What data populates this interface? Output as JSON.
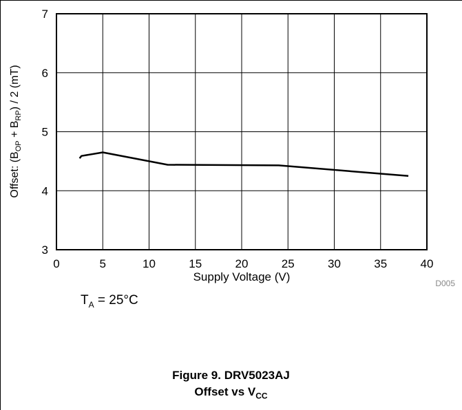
{
  "chart_data": {
    "type": "line",
    "xlabel": "Supply Voltage (V)",
    "ylabel": {
      "prefix": "Offset: (B",
      "sub1": "OP",
      "mid": " + B",
      "sub2": "RP",
      "suffix": ") / 2 (mT)"
    },
    "xlim": [
      0,
      40
    ],
    "ylim": [
      3,
      7
    ],
    "xticks": [
      0,
      5,
      10,
      15,
      20,
      25,
      30,
      35,
      40
    ],
    "yticks": [
      3,
      4,
      5,
      6,
      7
    ],
    "grid": true,
    "series": [
      {
        "x": [
          2.5,
          2.7,
          5.0,
          12.0,
          24.0,
          38.0
        ],
        "y": [
          4.55,
          4.59,
          4.65,
          4.44,
          4.43,
          4.25
        ],
        "color": "#000000"
      }
    ],
    "code": "D005"
  },
  "condition": {
    "main": "T",
    "sub": "A",
    "rest": " = 25°C"
  },
  "caption": {
    "line1": "Figure 9. DRV5023AJ",
    "line2_main": "Offset vs V",
    "line2_sub": "CC"
  }
}
